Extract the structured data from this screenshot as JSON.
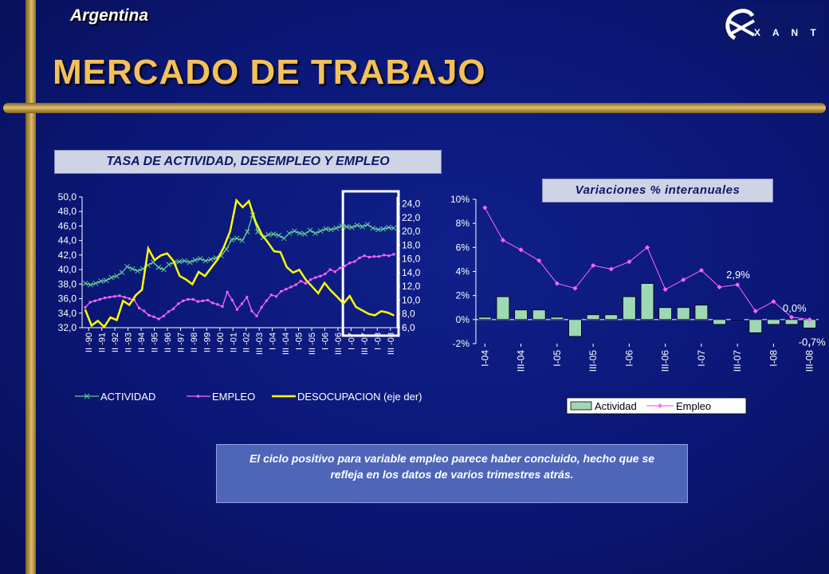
{
  "header": {
    "country": "Argentina",
    "title": "MERCADO DE TRABAJO",
    "logo_text": "EXANTE"
  },
  "left_chart_title": "TASA DE ACTIVIDAD, DESEMPLEO Y EMPLEO",
  "right_chart_subtitle": "Variaciones % interanuales",
  "comment": "El ciclo positivo para variable empleo parece haber concluido, hecho que se refleja en los datos de varios trimestres atrás.",
  "colors": {
    "actividad": "#66cc99",
    "empleo": "#ff66ff",
    "desocupacion": "#ffff00",
    "bars": "#9fd8b4",
    "highlight_box": "#ffffff",
    "title": "#f3c15a"
  },
  "chart_data": [
    {
      "type": "line",
      "title": "TASA DE ACTIVIDAD, DESEMPLEO Y EMPLEO",
      "x_tick_labels": [
        "II -90",
        "II -91",
        "II -92",
        "II -93",
        "II -94",
        "II -95",
        "II -96",
        "II -97",
        "II -98",
        "II -99",
        "II -00",
        "II -01",
        "II -02",
        "III -03",
        "I -04",
        "III -04",
        "I -05",
        "III -05",
        "I -06",
        "III -06",
        "I -07",
        "III -07",
        "I -08",
        "III -08"
      ],
      "ylim_left": [
        32.0,
        50.0
      ],
      "ylim_right": [
        6.0,
        25.0
      ],
      "y_ticks_left": [
        "50,0",
        "48,0",
        "46,0",
        "44,0",
        "42,0",
        "40,0",
        "38,0",
        "36,0",
        "34,0",
        "32,0"
      ],
      "y_ticks_right": [
        "24,0",
        "22,0",
        "20,0",
        "18,0",
        "16,0",
        "14,0",
        "12,0",
        "10,0",
        "8,0",
        "6,0"
      ],
      "highlight": "III -07 to III -08",
      "legend_position": "bottom",
      "series": [
        {
          "name": "ACTIVIDAD",
          "axis": "left",
          "values": [
            38.1,
            37.9,
            38.1,
            38.4,
            38.5,
            38.9,
            39.1,
            39.6,
            40.4,
            40.1,
            39.8,
            40.1,
            40.6,
            41.0,
            40.3,
            40.0,
            40.7,
            41.0,
            41.1,
            41.2,
            41.0,
            41.3,
            41.5,
            41.2,
            41.4,
            41.6,
            41.9,
            42.8,
            44.1,
            44.3,
            44.0,
            45.2,
            47.5,
            45.2,
            44.4,
            44.8,
            44.9,
            44.7,
            44.3,
            45.0,
            45.3,
            45.0,
            44.9,
            45.4,
            45.0,
            45.3,
            45.6,
            45.5,
            45.7,
            46.0,
            45.9,
            45.8,
            46.1,
            45.9,
            46.2,
            45.7,
            45.5,
            45.6,
            45.8,
            45.7
          ]
        },
        {
          "name": "EMPLEO",
          "axis": "left",
          "values": [
            34.8,
            35.5,
            35.7,
            35.9,
            36.1,
            36.2,
            36.3,
            36.4,
            36.2,
            36.0,
            35.8,
            34.7,
            34.3,
            33.7,
            33.5,
            33.2,
            33.6,
            34.2,
            34.6,
            35.3,
            35.7,
            35.9,
            35.9,
            35.6,
            35.7,
            35.8,
            35.4,
            35.2,
            34.9,
            36.9,
            35.8,
            34.5,
            35.3,
            36.2,
            34.3,
            33.6,
            34.8,
            35.7,
            36.5,
            36.3,
            37.0,
            37.3,
            37.6,
            37.9,
            38.4,
            38.1,
            38.6,
            38.9,
            39.1,
            39.4,
            40.0,
            39.7,
            40.2,
            40.5,
            40.9,
            41.1,
            41.6,
            41.9,
            41.7,
            41.8,
            41.8,
            42.0,
            41.9,
            42.1
          ]
        },
        {
          "name": "DESOCUPACION (eje der)",
          "axis": "right",
          "values": [
            8.6,
            6.3,
            7.0,
            6.1,
            7.5,
            7.1,
            9.9,
            9.3,
            10.7,
            11.5,
            17.5,
            15.8,
            16.5,
            16.8,
            15.7,
            13.5,
            13.0,
            12.3,
            14.1,
            13.5,
            14.7,
            15.9,
            17.7,
            20.0,
            24.5,
            23.5,
            24.4,
            21.5,
            19.6,
            18.4,
            17.1,
            17.0,
            14.8,
            14.0,
            14.4,
            13.0,
            12.0,
            11.0,
            12.5,
            11.4,
            10.5,
            9.5,
            10.6,
            9.0,
            8.5,
            8.0,
            7.8,
            8.4,
            8.2,
            7.8
          ]
        }
      ]
    },
    {
      "type": "bar",
      "title": "Variaciones % interanuales",
      "categories": [
        "I-04",
        "II-04",
        "III-04",
        "IV-04",
        "I-05",
        "II-05",
        "III-05",
        "IV-05",
        "I-06",
        "II-06",
        "III-06",
        "IV-06",
        "I-07",
        "II-07",
        "III-07",
        "IV-07",
        "I-08",
        "II-08",
        "III-08"
      ],
      "x_tick_labels": [
        "I-04",
        "III-04",
        "I-05",
        "III-05",
        "I-06",
        "III-06",
        "I-07",
        "III-07",
        "I-08",
        "III-08"
      ],
      "ylim": [
        -2,
        10
      ],
      "y_ticks": [
        "10%",
        "8%",
        "6%",
        "4%",
        "2%",
        "0%",
        "-2%"
      ],
      "legend_position": "bottom",
      "series": [
        {
          "name": "Actividad",
          "kind": "bar",
          "values": [
            0.2,
            1.9,
            0.8,
            0.8,
            0.2,
            -1.4,
            0.4,
            0.4,
            1.9,
            3.0,
            1.0,
            1.0,
            1.2,
            -0.4,
            0.0,
            -1.1,
            -0.4,
            -0.4,
            -0.7
          ]
        },
        {
          "name": "Empleo",
          "kind": "line",
          "values": [
            9.3,
            6.6,
            5.8,
            4.9,
            3.0,
            2.6,
            4.5,
            4.2,
            4.8,
            6.0,
            2.5,
            3.3,
            4.1,
            2.7,
            2.9,
            0.7,
            1.5,
            0.2,
            0.0
          ]
        }
      ],
      "annotations": [
        "2,9%",
        "0,0%",
        "-0,7%"
      ]
    }
  ]
}
